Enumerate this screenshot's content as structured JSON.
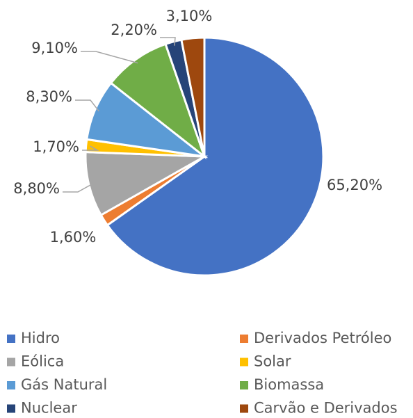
{
  "chart_data": {
    "type": "pie",
    "categories": [
      "Hidro",
      "Derivados Petróleo",
      "Eólica",
      "Solar",
      "Gás Natural",
      "Biomassa",
      "Nuclear",
      "Carvão e Derivados"
    ],
    "values": [
      65.2,
      1.6,
      8.8,
      1.7,
      8.3,
      9.1,
      2.2,
      3.1
    ],
    "value_labels": [
      "65,20%",
      "1,60%",
      "8,80%",
      "1,70%",
      "8,30%",
      "9,10%",
      "2,20%",
      "3,10%"
    ],
    "colors": [
      "#4472c4",
      "#ed7d31",
      "#a5a5a5",
      "#ffc000",
      "#5b9bd5",
      "#70ad47",
      "#264478",
      "#9e480e"
    ],
    "legend": "bottom"
  }
}
